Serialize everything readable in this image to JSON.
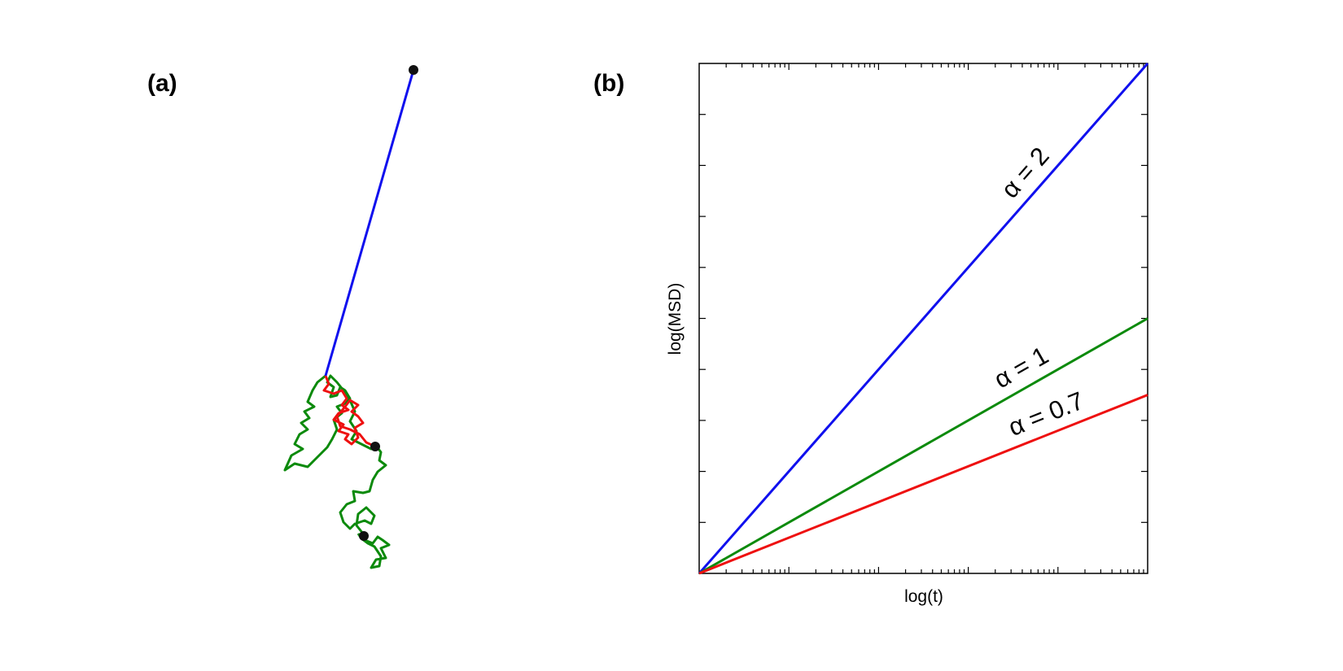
{
  "panels": {
    "a_label": "(a)",
    "b_label": "(b)"
  },
  "trajectories": {
    "colors": {
      "ballistic": "#1010ee",
      "normal": "#0c8a0c",
      "sub": "#ee1010",
      "marker": "#111111"
    },
    "ballistic": [
      [
        508,
        86
      ],
      [
        400,
        462
      ]
    ],
    "sub": [
      [
        400,
        462
      ],
      [
        404,
        472
      ],
      [
        398,
        480
      ],
      [
        410,
        484
      ],
      [
        420,
        480
      ],
      [
        426,
        490
      ],
      [
        420,
        498
      ],
      [
        428,
        504
      ],
      [
        416,
        508
      ],
      [
        410,
        516
      ],
      [
        422,
        522
      ],
      [
        416,
        530
      ],
      [
        428,
        534
      ],
      [
        424,
        540
      ],
      [
        432,
        546
      ],
      [
        440,
        538
      ],
      [
        436,
        526
      ],
      [
        446,
        520
      ],
      [
        440,
        512
      ],
      [
        432,
        506
      ],
      [
        440,
        498
      ],
      [
        430,
        492
      ],
      [
        424,
        500
      ],
      [
        414,
        512
      ],
      [
        418,
        524
      ],
      [
        430,
        528
      ],
      [
        442,
        534
      ],
      [
        450,
        544
      ],
      [
        461,
        549
      ]
    ],
    "normal": [
      [
        400,
        462
      ],
      [
        390,
        470
      ],
      [
        384,
        480
      ],
      [
        378,
        494
      ],
      [
        386,
        500
      ],
      [
        374,
        506
      ],
      [
        380,
        514
      ],
      [
        370,
        520
      ],
      [
        378,
        528
      ],
      [
        368,
        534
      ],
      [
        362,
        546
      ],
      [
        372,
        552
      ],
      [
        358,
        560
      ],
      [
        350,
        578
      ],
      [
        362,
        570
      ],
      [
        370,
        572
      ],
      [
        378,
        574
      ],
      [
        386,
        566
      ],
      [
        394,
        558
      ],
      [
        402,
        550
      ],
      [
        408,
        540
      ],
      [
        414,
        528
      ],
      [
        410,
        516
      ],
      [
        420,
        508
      ],
      [
        414,
        500
      ],
      [
        424,
        496
      ],
      [
        430,
        490
      ],
      [
        424,
        480
      ],
      [
        418,
        476
      ],
      [
        414,
        486
      ],
      [
        406,
        488
      ],
      [
        410,
        476
      ],
      [
        402,
        470
      ],
      [
        406,
        462
      ],
      [
        414,
        470
      ],
      [
        422,
        480
      ],
      [
        430,
        492
      ],
      [
        436,
        506
      ],
      [
        430,
        518
      ],
      [
        438,
        530
      ],
      [
        432,
        540
      ],
      [
        444,
        546
      ],
      [
        456,
        552
      ],
      [
        462,
        548
      ],
      [
        468,
        556
      ],
      [
        466,
        566
      ],
      [
        474,
        572
      ],
      [
        464,
        580
      ],
      [
        458,
        590
      ],
      [
        454,
        604
      ],
      [
        446,
        606
      ],
      [
        434,
        604
      ],
      [
        436,
        616
      ],
      [
        426,
        620
      ],
      [
        418,
        630
      ],
      [
        422,
        642
      ],
      [
        430,
        650
      ],
      [
        436,
        644
      ],
      [
        448,
        640
      ],
      [
        456,
        644
      ],
      [
        460,
        634
      ],
      [
        450,
        624
      ],
      [
        440,
        632
      ],
      [
        438,
        646
      ],
      [
        446,
        656
      ],
      [
        448,
        664
      ],
      [
        458,
        668
      ],
      [
        464,
        660
      ],
      [
        470,
        664
      ],
      [
        478,
        670
      ],
      [
        468,
        674
      ],
      [
        474,
        686
      ],
      [
        462,
        688
      ],
      [
        456,
        698
      ],
      [
        466,
        696
      ],
      [
        468,
        684
      ],
      [
        460,
        672
      ],
      [
        452,
        668
      ],
      [
        444,
        662
      ],
      [
        440,
        656
      ]
    ],
    "markers": [
      [
        508,
        86
      ],
      [
        461,
        549
      ],
      [
        447,
        659
      ]
    ]
  },
  "chart_data": {
    "type": "line",
    "title": "",
    "xlabel": "log(t)",
    "ylabel": "log(MSD)",
    "xscale": "log",
    "yscale": "log",
    "xlim": [
      0,
      1
    ],
    "ylim": [
      0,
      2
    ],
    "tick_labels": "none",
    "grid": false,
    "x": [
      0,
      1
    ],
    "series": [
      {
        "name": "α = 2",
        "exponent": 2,
        "values": [
          0,
          2
        ],
        "color": "#1010ee",
        "label_at": 0.76
      },
      {
        "name": "α = 1",
        "exponent": 1,
        "values": [
          0,
          1
        ],
        "color": "#0c8a0c",
        "label_at": 0.74
      },
      {
        "name": "α = 0.7",
        "exponent": 0.7,
        "values": [
          0,
          0.7
        ],
        "color": "#ee1010",
        "label_at": 0.79
      }
    ]
  }
}
